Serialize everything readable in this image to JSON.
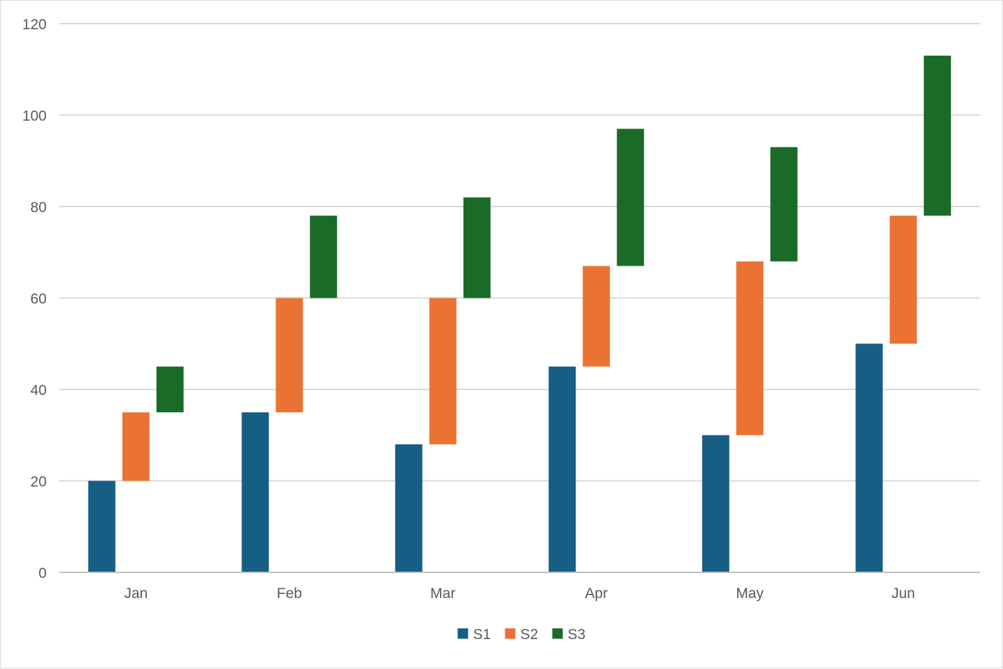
{
  "chart_data": {
    "type": "bar",
    "subtype": "floating-stacked-columns",
    "title": "",
    "xlabel": "",
    "ylabel": "",
    "categories": [
      "Jan",
      "Feb",
      "Mar",
      "Apr",
      "May",
      "Jun"
    ],
    "ylim": [
      0,
      120
    ],
    "yticks": [
      0,
      20,
      40,
      60,
      80,
      100,
      120
    ],
    "grid": true,
    "legend_position": "bottom",
    "series": [
      {
        "name": "S1",
        "color": "#175e84",
        "low": [
          0,
          0,
          0,
          0,
          0,
          0
        ],
        "high": [
          20,
          35,
          28,
          45,
          30,
          50
        ]
      },
      {
        "name": "S2",
        "color": "#ea7334",
        "low": [
          20,
          35,
          28,
          45,
          30,
          50
        ],
        "high": [
          35,
          60,
          60,
          67,
          68,
          78
        ]
      },
      {
        "name": "S3",
        "color": "#1b6b28",
        "low": [
          35,
          60,
          60,
          67,
          68,
          78
        ],
        "high": [
          45,
          78,
          82,
          97,
          93,
          113
        ]
      }
    ]
  }
}
